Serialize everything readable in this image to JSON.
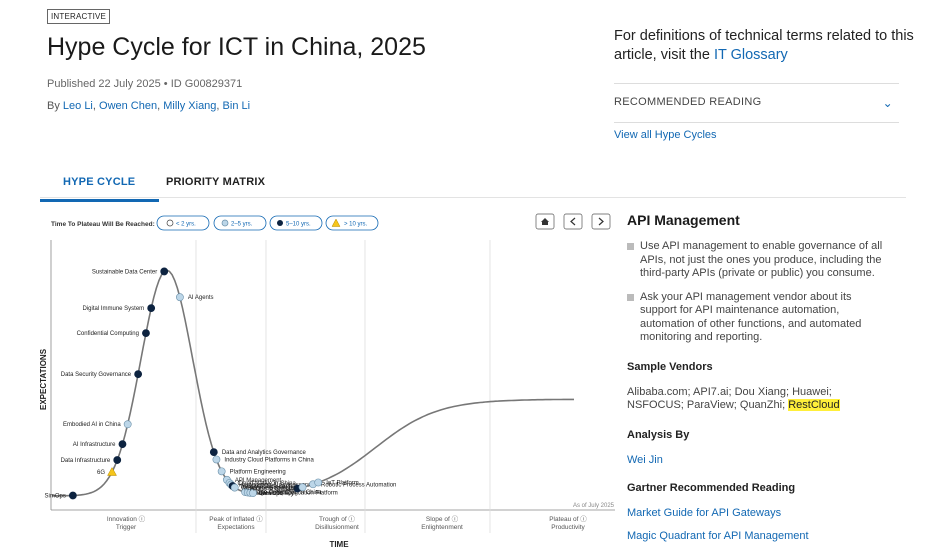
{
  "header": {
    "badge": "INTERACTIVE",
    "title": "Hype Cycle for ICT in China, 2025",
    "published": "Published 22 July 2025 • ID G00829371",
    "by": "By",
    "authors": [
      "Leo Li",
      "Owen Chen",
      "Milly Xiang",
      "Bin Li"
    ]
  },
  "aside": {
    "definitions_text": "For definitions of technical terms related to this article, visit the",
    "glossary_link": "IT Glossary",
    "recommended_label": "RECOMMENDED READING",
    "view_all": "View all Hype Cycles"
  },
  "tabs": [
    {
      "label": "HYPE CYCLE",
      "active": true
    },
    {
      "label": "PRIORITY MATRIX",
      "active": false
    }
  ],
  "chart": {
    "legend_title": "Time To Plateau Will Be Reached:",
    "legend_items": [
      "< 2 yrs.",
      "2–5 yrs.",
      "5–10 yrs.",
      "> 10 yrs."
    ],
    "y_label": "EXPECTATIONS",
    "x_label": "TIME",
    "as_of": "As of July 2025",
    "phases": [
      [
        "Innovation",
        "Trigger"
      ],
      [
        "Peak of Inflated",
        "Expectations"
      ],
      [
        "Trough of",
        "Disillusionment"
      ],
      [
        "Slope of",
        "Enlightenment"
      ],
      [
        "Plateau of",
        "Productivity"
      ]
    ],
    "points": [
      {
        "label": "SimOps",
        "cat": "5-10",
        "t": 0.04
      },
      {
        "label": "6G",
        "cat": ">10",
        "t": 0.115
      },
      {
        "label": "Data Infrastructure",
        "cat": "5-10",
        "t": 0.125
      },
      {
        "label": "AI Infrastructure",
        "cat": "5-10",
        "t": 0.135
      },
      {
        "label": "Embodied AI in China",
        "cat": "2-5",
        "t": 0.145
      },
      {
        "label": "Data Security Governance",
        "cat": "5-10",
        "t": 0.165
      },
      {
        "label": "Confidential Computing",
        "cat": "5-10",
        "t": 0.18
      },
      {
        "label": "Digital Immune System",
        "cat": "5-10",
        "t": 0.19
      },
      {
        "label": "Sustainable Data Center",
        "cat": "5-10",
        "t": 0.215
      },
      {
        "label": "AI Agents",
        "cat": "2-5",
        "t": 0.245
      },
      {
        "label": "Data and Analytics Governance",
        "cat": "5-10",
        "t": 0.31
      },
      {
        "label": "Industry Cloud Platforms in China",
        "cat": "2-5",
        "t": 0.315
      },
      {
        "label": "Platform Engineering",
        "cat": "2-5",
        "t": 0.325
      },
      {
        "label": "API Management",
        "cat": "2-5",
        "t": 0.335
      },
      {
        "label": "Cloud-Native in China",
        "cat": "2-5",
        "t": 0.34
      },
      {
        "label": "Homegrown AI Processors",
        "cat": "2-5",
        "t": 0.343
      },
      {
        "label": "National Data Exchange",
        "cat": "5-10",
        "t": 0.346
      },
      {
        "label": "DBMS Self-Sufficiency",
        "cat": "2-5",
        "t": 0.35
      },
      {
        "label": "Edge Computing in China",
        "cat": "2-5",
        "t": 0.37
      },
      {
        "label": "Low-Code Application Platform",
        "cat": "2-5",
        "t": 0.375
      },
      {
        "label": "Data Literacy",
        "cat": "2-5",
        "t": 0.38
      },
      {
        "label": "DevOps",
        "cat": "2-5",
        "t": 0.385
      },
      {
        "label": "AIOps in China",
        "cat": "5-10",
        "t": 0.47
      },
      {
        "label": "Workforce Superapp",
        "cat": "2-5",
        "t": 0.48
      },
      {
        "label": "Robotic Process Automation",
        "cat": "2-5",
        "t": 0.5
      },
      {
        "label": "IoT Platform",
        "cat": "2-5",
        "t": 0.51
      }
    ]
  },
  "panel": {
    "title": "API Management",
    "bullets": [
      "Use API management to enable governance of all APIs, not just the ones you produce, including the third-party APIs (private or public) you consume.",
      "Ask your API management vendor about its support for API maintenance automation, automation of other functions, and automated monitoring and reporting."
    ],
    "vendors_heading": "Sample Vendors",
    "vendors_text": "Alibaba.com; API7.ai; Dou Xiang; Huawei; NSFOCUS; ParaView; QuanZhi;",
    "vendor_highlight": "RestCloud",
    "analysis_heading": "Analysis By",
    "analyst": "Wei Jin",
    "reading_heading": "Gartner Recommended Reading",
    "reading_links": [
      "Market Guide for API Gateways",
      "Magic Quadrant for API Management"
    ]
  },
  "colors": {
    "accent": "#1268b3",
    "dot_lt2": "#ffffff",
    "dot_2to5": "#bcd6e8",
    "dot_5to10": "#0d2340",
    "dot_gt10": "#f5c51b",
    "highlight": "#ffef3a"
  }
}
